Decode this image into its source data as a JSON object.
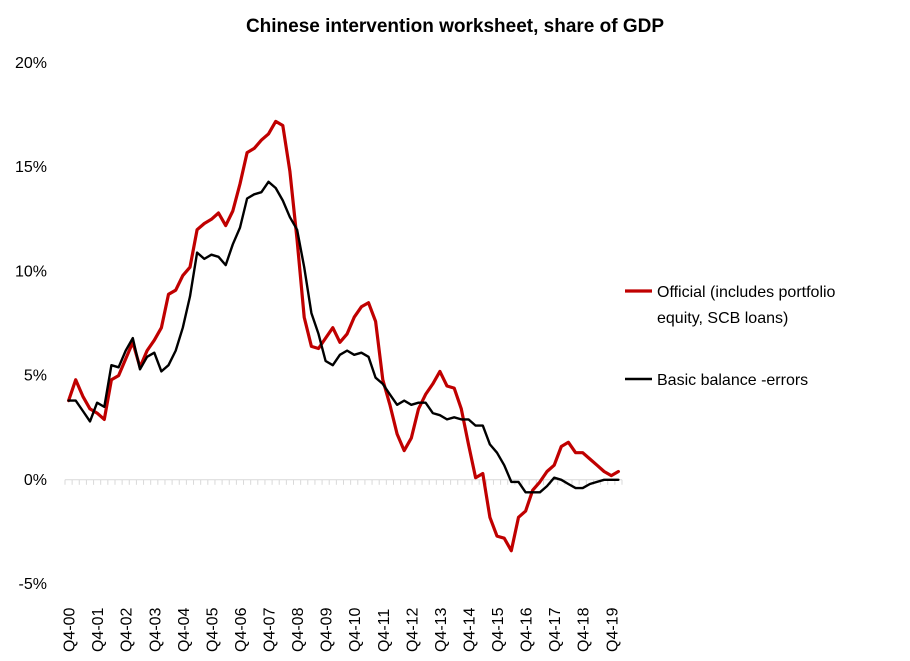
{
  "chart_data": {
    "type": "line",
    "title": "Chinese intervention worksheet, share of GDP",
    "xlabel": "",
    "ylabel": "",
    "ylim": [
      -0.05,
      0.2
    ],
    "y_ticks": [
      -0.05,
      0,
      0.05,
      0.1,
      0.15,
      0.2
    ],
    "y_tick_labels": [
      "-5%",
      "0%",
      "5%",
      "10%",
      "15%",
      "20%"
    ],
    "x_tick_labels": [
      "Q4-00",
      "Q4-01",
      "Q4-02",
      "Q4-03",
      "Q4-04",
      "Q4-05",
      "Q4-06",
      "Q4-07",
      "Q4-08",
      "Q4-09",
      "Q4-10",
      "Q4-11",
      "Q4-12",
      "Q4-13",
      "Q4-14",
      "Q4-15",
      "Q4-16",
      "Q4-17",
      "Q4-18",
      "Q4-19"
    ],
    "x_tick_index": [
      0,
      4,
      8,
      12,
      16,
      20,
      24,
      28,
      32,
      36,
      40,
      44,
      48,
      52,
      56,
      60,
      64,
      68,
      72,
      76
    ],
    "x_count": 78,
    "grid": false,
    "legend_position": "right",
    "series": [
      {
        "name": "Official (includes portfolio equity, SCB loans)",
        "name_lines": [
          "Official (includes portfolio",
          "equity, SCB loans)"
        ],
        "color": "#c00000",
        "values": [
          0.038,
          0.048,
          0.04,
          0.034,
          0.032,
          0.029,
          0.048,
          0.05,
          0.058,
          0.066,
          0.054,
          0.062,
          0.067,
          0.073,
          0.089,
          0.091,
          0.098,
          0.102,
          0.12,
          0.123,
          0.125,
          0.128,
          0.122,
          0.129,
          0.142,
          0.157,
          0.159,
          0.163,
          0.166,
          0.172,
          0.17,
          0.148,
          0.115,
          0.078,
          0.064,
          0.063,
          0.068,
          0.073,
          0.066,
          0.07,
          0.078,
          0.083,
          0.085,
          0.076,
          0.048,
          0.036,
          0.022,
          0.014,
          0.02,
          0.034,
          0.041,
          0.046,
          0.052,
          0.045,
          0.044,
          0.034,
          0.017,
          0.001,
          0.003,
          -0.018,
          -0.027,
          -0.028,
          -0.034,
          -0.018,
          -0.015,
          -0.005,
          -0.001,
          0.004,
          0.007,
          0.016,
          0.018,
          0.013,
          0.013,
          0.01,
          0.007,
          0.004,
          0.002,
          0.004
        ]
      },
      {
        "name": "Basic balance -errors",
        "name_lines": [
          "Basic balance -errors"
        ],
        "color": "#000000",
        "values": [
          0.038,
          0.038,
          0.033,
          0.028,
          0.037,
          0.035,
          0.055,
          0.054,
          0.062,
          0.068,
          0.053,
          0.059,
          0.061,
          0.052,
          0.055,
          0.062,
          0.073,
          0.088,
          0.109,
          0.106,
          0.108,
          0.107,
          0.103,
          0.113,
          0.121,
          0.135,
          0.137,
          0.138,
          0.143,
          0.14,
          0.134,
          0.126,
          0.12,
          0.102,
          0.08,
          0.07,
          0.057,
          0.055,
          0.06,
          0.062,
          0.06,
          0.061,
          0.059,
          0.049,
          0.046,
          0.041,
          0.036,
          0.038,
          0.036,
          0.037,
          0.037,
          0.032,
          0.031,
          0.029,
          0.03,
          0.029,
          0.029,
          0.026,
          0.026,
          0.017,
          0.013,
          0.007,
          -0.001,
          -0.001,
          -0.006,
          -0.006,
          -0.006,
          -0.003,
          0.001,
          0.0,
          -0.002,
          -0.004,
          -0.004,
          -0.002,
          -0.001,
          0.0,
          0.0,
          0.0
        ]
      }
    ]
  }
}
